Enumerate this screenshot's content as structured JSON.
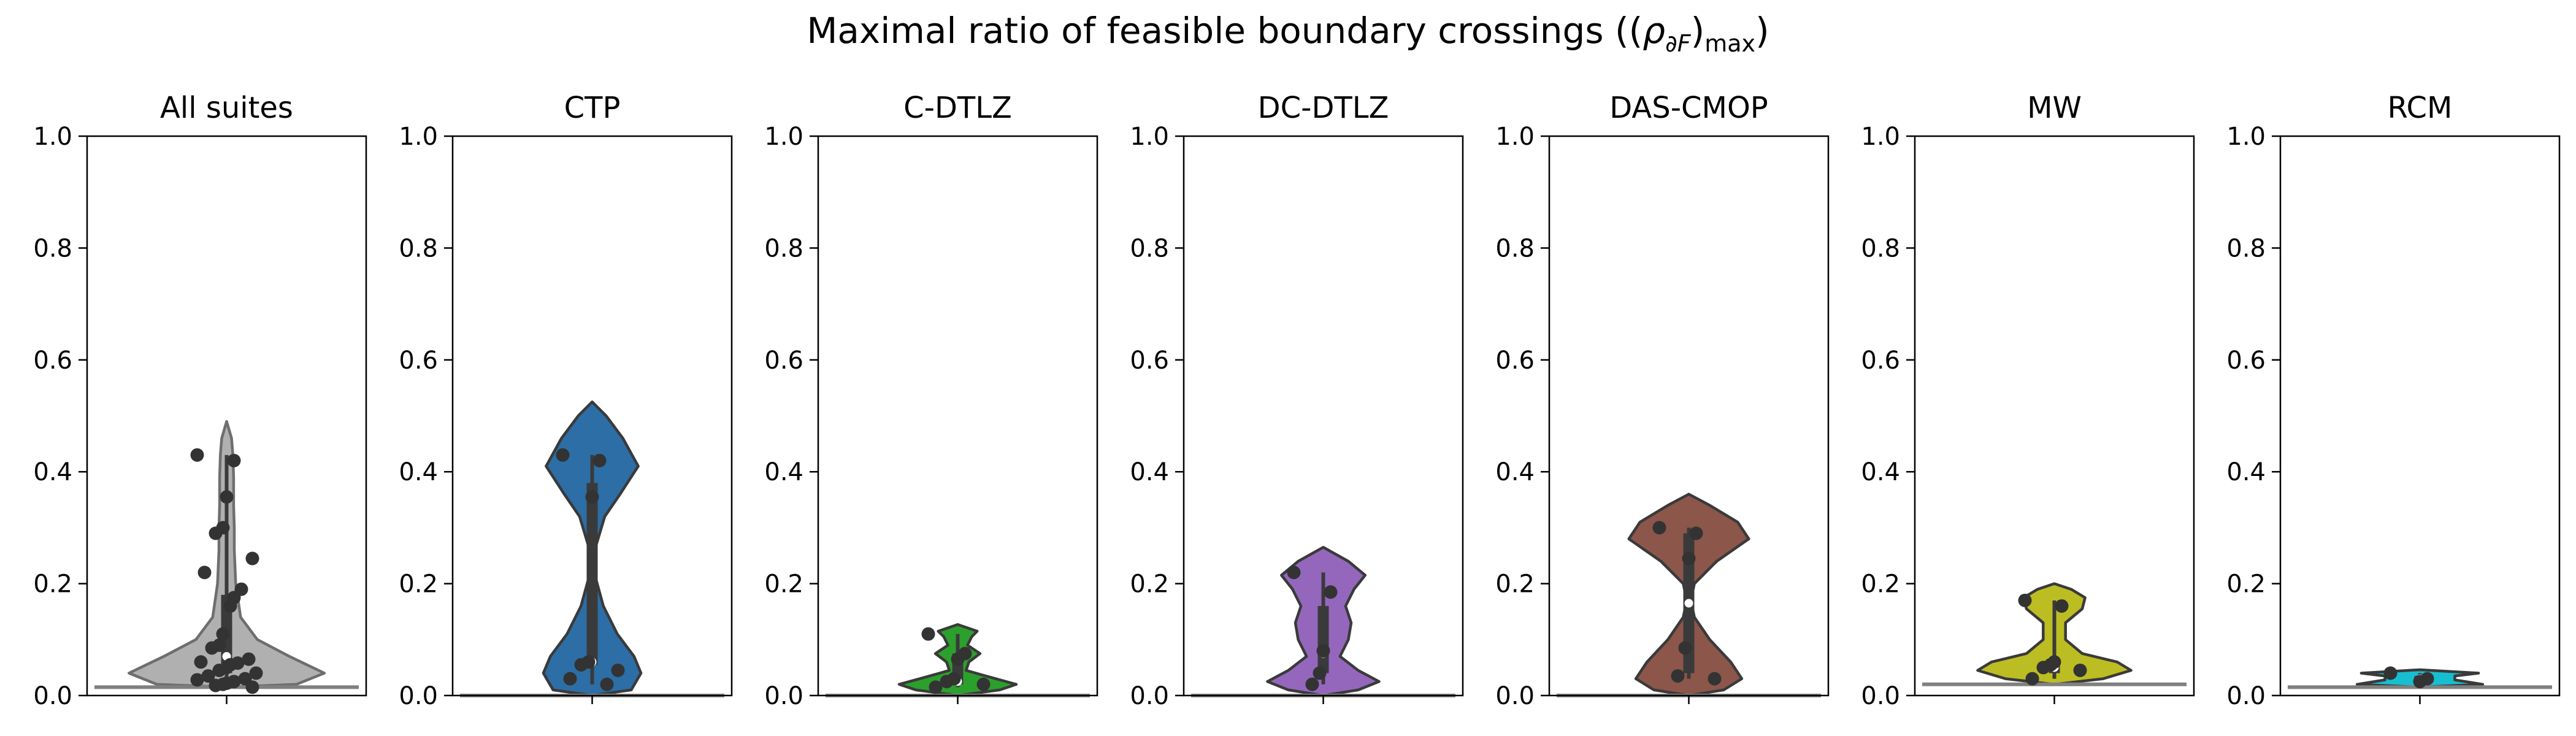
{
  "figure": {
    "title_main": "Maximal ratio of feasible boundary crossings ((",
    "title_rho": "ρ",
    "title_sub_partial": "∂F",
    "title_sub_max": "max",
    "title_close": ")",
    "title_close_outer": ")"
  },
  "chart_data": {
    "type": "violin",
    "ylim": [
      0,
      1
    ],
    "yticks": [
      "0.0",
      "0.2",
      "0.4",
      "0.6",
      "0.8",
      "1.0"
    ],
    "panels": [
      {
        "title": "All suites",
        "color": "#b0b0b0",
        "edge": "#6e6e6e",
        "profile": [
          [
            0.015,
            0.0
          ],
          [
            0.02,
            0.5
          ],
          [
            0.04,
            0.7
          ],
          [
            0.07,
            0.45
          ],
          [
            0.1,
            0.22
          ],
          [
            0.14,
            0.1
          ],
          [
            0.2,
            0.065
          ],
          [
            0.26,
            0.055
          ],
          [
            0.3,
            0.055
          ],
          [
            0.34,
            0.05
          ],
          [
            0.39,
            0.05
          ],
          [
            0.43,
            0.045
          ],
          [
            0.46,
            0.035
          ],
          [
            0.49,
            0.0
          ]
        ],
        "box": {
          "q1": 0.04,
          "median": 0.07,
          "q3": 0.18,
          "wlo": 0.015,
          "whi": 0.43
        },
        "points": [
          0.43,
          0.42,
          0.355,
          0.3,
          0.29,
          0.245,
          0.22,
          0.19,
          0.175,
          0.16,
          0.11,
          0.09,
          0.085,
          0.065,
          0.06,
          0.058,
          0.055,
          0.05,
          0.045,
          0.04,
          0.035,
          0.03,
          0.028,
          0.025,
          0.022,
          0.02,
          0.018,
          0.015
        ]
      },
      {
        "title": "CTP",
        "color": "#2c6ea5",
        "edge": "#3a3a3a",
        "profile": [
          [
            -0.0,
            0.0
          ],
          [
            0.01,
            0.28
          ],
          [
            0.04,
            0.35
          ],
          [
            0.07,
            0.3
          ],
          [
            0.11,
            0.18
          ],
          [
            0.16,
            0.08
          ],
          [
            0.21,
            0.025
          ],
          [
            0.27,
            0.03
          ],
          [
            0.32,
            0.09
          ],
          [
            0.36,
            0.2
          ],
          [
            0.41,
            0.33
          ],
          [
            0.46,
            0.22
          ],
          [
            0.5,
            0.1
          ],
          [
            0.525,
            0.0
          ]
        ],
        "box": {
          "q1": 0.055,
          "median": 0.06,
          "q3": 0.38,
          "wlo": 0.02,
          "whi": 0.43
        },
        "points": [
          0.43,
          0.42,
          0.355,
          0.06,
          0.055,
          0.045,
          0.03,
          0.02
        ]
      },
      {
        "title": "C-DTLZ",
        "color": "#2ca02c",
        "edge": "#3a3a3a",
        "profile": [
          [
            0.0,
            0.0
          ],
          [
            0.01,
            0.3
          ],
          [
            0.02,
            0.42
          ],
          [
            0.035,
            0.2
          ],
          [
            0.045,
            0.06
          ],
          [
            0.06,
            0.08
          ],
          [
            0.075,
            0.16
          ],
          [
            0.09,
            0.07
          ],
          [
            0.105,
            0.1
          ],
          [
            0.115,
            0.14
          ],
          [
            0.127,
            0.0
          ]
        ],
        "box": {
          "q1": 0.02,
          "median": 0.025,
          "q3": 0.075,
          "wlo": 0.015,
          "whi": 0.11
        },
        "points": [
          0.11,
          0.075,
          0.065,
          0.03,
          0.025,
          0.02,
          0.015
        ]
      },
      {
        "title": "DC-DTLZ",
        "color": "#9467bd",
        "edge": "#3a3a3a",
        "profile": [
          [
            0.0,
            0.0
          ],
          [
            0.01,
            0.25
          ],
          [
            0.025,
            0.4
          ],
          [
            0.045,
            0.25
          ],
          [
            0.07,
            0.12
          ],
          [
            0.1,
            0.18
          ],
          [
            0.13,
            0.2
          ],
          [
            0.16,
            0.16
          ],
          [
            0.19,
            0.22
          ],
          [
            0.215,
            0.3
          ],
          [
            0.24,
            0.18
          ],
          [
            0.265,
            0.0
          ]
        ],
        "box": {
          "q1": 0.04,
          "median": 0.075,
          "q3": 0.16,
          "wlo": 0.02,
          "whi": 0.22
        },
        "points": [
          0.22,
          0.185,
          0.08,
          0.04,
          0.02
        ]
      },
      {
        "title": "DAS-CMOP",
        "color": "#8c564b",
        "edge": "#3a3a3a",
        "profile": [
          [
            0.0,
            0.0
          ],
          [
            0.01,
            0.25
          ],
          [
            0.03,
            0.38
          ],
          [
            0.06,
            0.3
          ],
          [
            0.1,
            0.15
          ],
          [
            0.14,
            0.04
          ],
          [
            0.17,
            0.015
          ],
          [
            0.2,
            0.04
          ],
          [
            0.24,
            0.2
          ],
          [
            0.28,
            0.43
          ],
          [
            0.31,
            0.35
          ],
          [
            0.34,
            0.15
          ],
          [
            0.36,
            0.0
          ]
        ],
        "box": {
          "q1": 0.04,
          "median": 0.165,
          "q3": 0.29,
          "wlo": 0.03,
          "whi": 0.3
        },
        "points": [
          0.3,
          0.29,
          0.245,
          0.085,
          0.035,
          0.03
        ]
      },
      {
        "title": "MW",
        "color": "#bcbd22",
        "edge": "#3a3a3a",
        "profile": [
          [
            0.02,
            0.0
          ],
          [
            0.03,
            0.35
          ],
          [
            0.045,
            0.55
          ],
          [
            0.06,
            0.45
          ],
          [
            0.075,
            0.2
          ],
          [
            0.1,
            0.08
          ],
          [
            0.13,
            0.08
          ],
          [
            0.155,
            0.2
          ],
          [
            0.175,
            0.22
          ],
          [
            0.19,
            0.12
          ],
          [
            0.2,
            0.0
          ]
        ],
        "box": {
          "q1": 0.04,
          "median": 0.05,
          "q3": 0.065,
          "wlo": 0.03,
          "whi": 0.17
        },
        "points": [
          0.17,
          0.16,
          0.06,
          0.055,
          0.05,
          0.045,
          0.03
        ]
      },
      {
        "title": "RCM",
        "color": "#17becf",
        "edge": "#3a3a3a",
        "profile": [
          [
            0.015,
            0.0
          ],
          [
            0.02,
            0.45
          ],
          [
            0.028,
            0.25
          ],
          [
            0.035,
            0.25
          ],
          [
            0.04,
            0.42
          ],
          [
            0.046,
            0.0
          ]
        ],
        "box": {
          "q1": 0.025,
          "median": 0.03,
          "q3": 0.035,
          "wlo": 0.02,
          "whi": 0.04
        },
        "points": [
          0.04,
          0.03,
          0.025
        ]
      }
    ]
  }
}
